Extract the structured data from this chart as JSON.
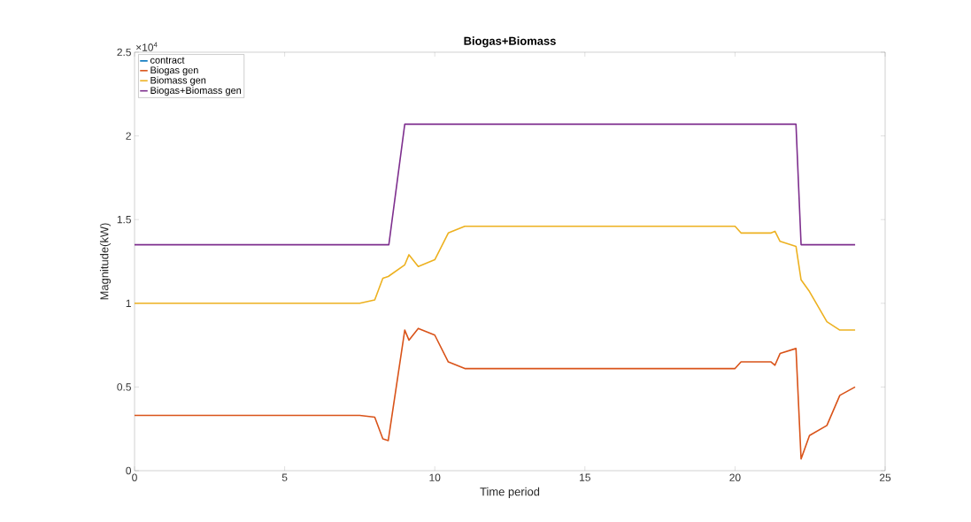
{
  "chart_data": {
    "type": "line",
    "title": "Biogas+Biomass",
    "xlabel": "Time period",
    "ylabel": "Magnitude(kW)",
    "annotations": [
      "×10$^{4}$"
    ],
    "x": [
      0,
      7.5,
      8.0,
      8.27,
      8.45,
      9.0,
      9.14,
      9.45,
      10.0,
      10.45,
      11.0,
      20.0,
      20.2,
      21.2,
      21.33,
      21.5,
      22.03,
      22.2,
      22.48,
      23.06,
      23.49,
      24
    ],
    "series": [
      {
        "name": "contract",
        "color": "#0072bd",
        "values": [
          null,
          null,
          null,
          null,
          null,
          null,
          null,
          null,
          null,
          null,
          null,
          null,
          null,
          null,
          null,
          null,
          null,
          null,
          null,
          null,
          null,
          null
        ]
      },
      {
        "name": "Biogas gen",
        "color": "#d95319",
        "values": [
          0.33,
          0.33,
          0.32,
          0.19,
          0.18,
          0.84,
          0.78,
          0.85,
          0.81,
          0.65,
          0.61,
          0.61,
          0.65,
          0.65,
          0.63,
          0.7,
          0.73,
          0.07,
          0.21,
          0.27,
          0.45,
          0.5
        ]
      },
      {
        "name": "Biomass gen",
        "color": "#edb120",
        "values": [
          1.0,
          1.0,
          1.02,
          1.15,
          1.16,
          1.23,
          1.29,
          1.22,
          1.26,
          1.42,
          1.46,
          1.46,
          1.42,
          1.42,
          1.43,
          1.37,
          1.34,
          1.14,
          1.07,
          0.89,
          0.84,
          0.84
        ]
      },
      {
        "name": "Biogas+Biomass gen",
        "color": "#7e2f8e",
        "x": [
          0,
          8.47,
          9.0,
          22.03,
          22.2,
          24
        ],
        "values": [
          1.35,
          1.35,
          2.07,
          2.07,
          1.35,
          1.35
        ]
      }
    ],
    "xlim": [
      0,
      25
    ],
    "ylim": [
      0,
      2.5
    ],
    "xticks": [
      0,
      5,
      10,
      15,
      20,
      25
    ],
    "yticks": [
      0,
      0.5,
      1,
      1.5,
      2,
      2.5
    ],
    "legend": "top left"
  }
}
